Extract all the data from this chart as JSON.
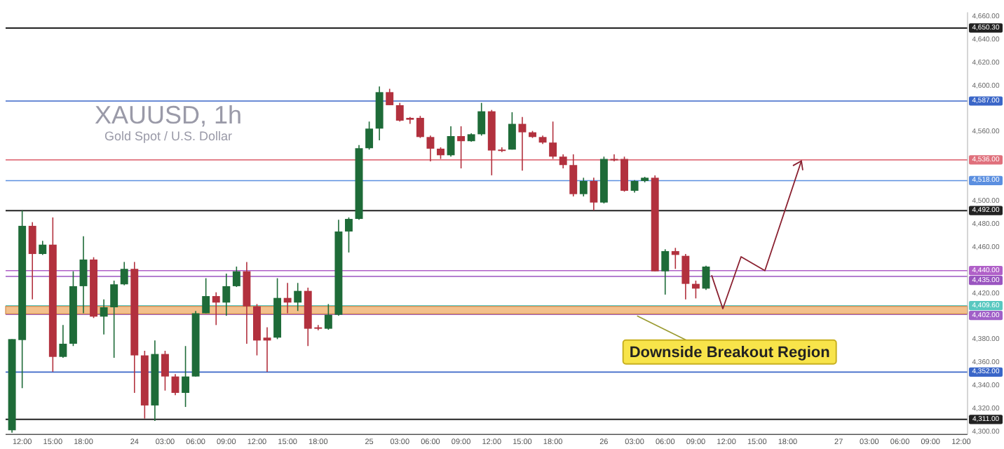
{
  "chart_data": {
    "type": "candlestick",
    "title": "XAUUSD, 1h",
    "subtitle": "Gold Spot / U.S. Dollar",
    "categories": [
      null,
      "12:00",
      null,
      null,
      "15:00",
      null,
      null,
      "18:00",
      null,
      null,
      null,
      null,
      "24",
      null,
      null,
      "03:00",
      null,
      null,
      "06:00",
      null,
      null,
      "09:00",
      null,
      null,
      "12:00",
      null,
      null,
      "15:00",
      null,
      null,
      "18:00",
      null,
      null,
      null,
      null,
      "25",
      null,
      null,
      "03:00",
      null,
      null,
      "06:00",
      null,
      null,
      "09:00",
      null,
      null,
      "12:00",
      null,
      null,
      "15:00",
      null,
      null,
      "18:00",
      null,
      null,
      null,
      null,
      "26",
      null,
      null,
      "03:00",
      null,
      null,
      "06:00",
      null,
      null,
      "09:00",
      null,
      null,
      "12:00",
      null,
      null,
      "15:00",
      null,
      null,
      "18:00",
      null,
      null,
      null,
      null,
      "27",
      null,
      null,
      "03:00",
      null,
      null,
      "06:00",
      null,
      null,
      "09:00",
      null,
      null,
      "12:00"
    ],
    "ohlc": [
      [
        4301.6,
        4380.6,
        4299.5,
        4380.6
      ],
      [
        4379.8,
        4492.2,
        4338.1,
        4478.8
      ],
      [
        4478.8,
        4482.0,
        4415.1,
        4454.4
      ],
      [
        4454.4,
        4465.8,
        4453.6,
        4462.5
      ],
      [
        4462.5,
        4486.1,
        4352.3,
        4365.2
      ],
      [
        4365.2,
        4392.8,
        4364.4,
        4376.6
      ],
      [
        4376.6,
        4439.4,
        4374.6,
        4426.5
      ],
      [
        4426.5,
        4469.8,
        4403.0,
        4449.6
      ],
      [
        4449.6,
        4451.6,
        4398.9,
        4400.1
      ],
      [
        4400.1,
        4415.1,
        4384.7,
        4408.2
      ],
      [
        4408.2,
        4431.3,
        4364.4,
        4428.1
      ],
      [
        4428.1,
        4447.5,
        4427.3,
        4441.5
      ],
      [
        4441.5,
        4447.5,
        4334.0,
        4366.5
      ],
      [
        4366.5,
        4370.5,
        4311.7,
        4323.1
      ],
      [
        4323.1,
        4379.4,
        4309.7,
        4367.7
      ],
      [
        4367.7,
        4370.5,
        4336.0,
        4348.2
      ],
      [
        4348.2,
        4350.2,
        4332.0,
        4334.0
      ],
      [
        4334.0,
        4374.6,
        4321.8,
        4348.2
      ],
      [
        4348.2,
        4405.0,
        4348.2,
        4403.0
      ],
      [
        4403.0,
        4433.4,
        4403.0,
        4417.9
      ],
      [
        4417.9,
        4421.2,
        4392.8,
        4412.3
      ],
      [
        4412.3,
        4437.4,
        4400.9,
        4426.5
      ],
      [
        4426.5,
        4443.5,
        4425.8,
        4439.4
      ],
      [
        4439.4,
        4447.5,
        4376.6,
        4409.0
      ],
      [
        4409.0,
        4411.0,
        4366.5,
        4379.4
      ],
      [
        4381.9,
        4390.8,
        4352.3,
        4379.4
      ],
      [
        4381.9,
        4433.4,
        4380.6,
        4416.3
      ],
      [
        4416.3,
        4429.3,
        4403.0,
        4412.3
      ],
      [
        4412.3,
        4429.3,
        4405.0,
        4422.4
      ],
      [
        4422.4,
        4425.2,
        4374.6,
        4389.6
      ],
      [
        4390.8,
        4392.8,
        4388.3,
        4389.6
      ],
      [
        4389.6,
        4411.0,
        4388.7,
        4401.7
      ],
      [
        4401.7,
        4484.0,
        4400.9,
        4473.9
      ],
      [
        4473.9,
        4486.1,
        4455.7,
        4484.8
      ],
      [
        4484.8,
        4548.9,
        4484.0,
        4546.1
      ],
      [
        4546.1,
        4569.2,
        4544.9,
        4563.1
      ],
      [
        4563.1,
        4599.6,
        4553.0,
        4594.7
      ],
      [
        4594.7,
        4597.6,
        4583.4,
        4583.4
      ],
      [
        4583.4,
        4585.4,
        4569.2,
        4570.0
      ],
      [
        4572.4,
        4573.2,
        4567.2,
        4570.8
      ],
      [
        4572.4,
        4574.1,
        4555.0,
        4555.8
      ],
      [
        4555.8,
        4557.0,
        4534.7,
        4545.7
      ],
      [
        4545.7,
        4546.9,
        4536.8,
        4540.0
      ],
      [
        4540.0,
        4565.1,
        4538.8,
        4556.6
      ],
      [
        4556.6,
        4565.1,
        4528.6,
        4552.2
      ],
      [
        4552.2,
        4559.1,
        4551.8,
        4558.2
      ],
      [
        4558.2,
        4585.4,
        4557.0,
        4578.1
      ],
      [
        4578.1,
        4579.3,
        4522.6,
        4544.1
      ],
      [
        4544.9,
        4546.9,
        4542.8,
        4544.1
      ],
      [
        4544.9,
        4577.3,
        4544.9,
        4567.2
      ],
      [
        4567.2,
        4573.2,
        4526.6,
        4559.9
      ],
      [
        4559.9,
        4561.1,
        4555.0,
        4555.8
      ],
      [
        4555.8,
        4557.0,
        4549.7,
        4551.0
      ],
      [
        4551.0,
        4569.2,
        4536.8,
        4538.8
      ],
      [
        4538.8,
        4540.8,
        4528.6,
        4531.5
      ],
      [
        4531.5,
        4540.8,
        4504.3,
        4506.3
      ],
      [
        4506.3,
        4520.5,
        4504.3,
        4517.7
      ],
      [
        4517.7,
        4520.5,
        4492.2,
        4499.0
      ],
      [
        4499.0,
        4538.8,
        4498.2,
        4536.8
      ],
      [
        4536.8,
        4540.8,
        4534.7,
        4536.0
      ],
      [
        4536.8,
        4538.8,
        4508.4,
        4509.2
      ],
      [
        4509.2,
        4518.5,
        4507.6,
        4517.7
      ],
      [
        4517.7,
        4521.3,
        4516.5,
        4520.5
      ],
      [
        4520.5,
        4522.6,
        4439.4,
        4439.4
      ],
      [
        4439.4,
        4458.5,
        4419.2,
        4456.9
      ],
      [
        4456.9,
        4459.7,
        4441.5,
        4453.6
      ],
      [
        4452.8,
        4454.4,
        4415.1,
        4428.5
      ],
      [
        4428.5,
        4431.3,
        4415.9,
        4424.4
      ],
      [
        4424.4,
        4444.3,
        4423.2,
        4443.5
      ],
      null,
      null,
      null,
      null,
      null,
      null,
      null,
      null,
      null,
      null,
      null,
      null,
      null,
      null,
      null,
      null,
      null,
      null,
      null,
      null,
      null,
      null,
      null,
      null,
      null
    ],
    "colors": [
      "#1e6b38",
      "#1e6b38",
      "#b2313e",
      "#1e6b38",
      "#b2313e",
      "#1e6b38",
      "#1e6b38",
      "#1e6b38",
      "#b2313e",
      "#1e6b38",
      "#1e6b38",
      "#1e6b38",
      "#b2313e",
      "#b2313e",
      "#1e6b38",
      "#b2313e",
      "#b2313e",
      "#1e6b38",
      "#1e6b38",
      "#1e6b38",
      "#b2313e",
      "#1e6b38",
      "#1e6b38",
      "#b2313e",
      "#b2313e",
      "#b2313e",
      "#1e6b38",
      "#b2313e",
      "#1e6b38",
      "#b2313e",
      "#b2313e",
      "#1e6b38",
      "#1e6b38",
      "#1e6b38",
      "#1e6b38",
      "#1e6b38",
      "#1e6b38",
      "#b2313e",
      "#b2313e",
      "#b2313e",
      "#b2313e",
      "#b2313e",
      "#b2313e",
      "#1e6b38",
      "#b2313e",
      "#1e6b38",
      "#1e6b38",
      "#b2313e",
      "#b2313e",
      "#1e6b38",
      "#b2313e",
      "#b2313e",
      "#b2313e",
      "#b2313e",
      "#b2313e",
      "#b2313e",
      "#1e6b38",
      "#b2313e",
      "#1e6b38",
      "#b2313e",
      "#b2313e",
      "#1e6b38",
      "#1e6b38",
      "#b2313e",
      "#1e6b38",
      "#b2313e",
      "#b2313e",
      "#b2313e",
      "#1e6b38",
      null,
      null,
      null,
      null,
      null,
      null,
      null,
      null,
      null,
      null,
      null,
      null,
      null,
      null,
      null,
      null,
      null,
      null,
      null,
      null,
      null,
      null,
      null,
      null,
      null
    ],
    "ylim": [
      4298,
      4664
    ],
    "yticks": [
      {
        "value": 4660,
        "label": "4,660.00"
      },
      {
        "value": 4640,
        "label": "4,640.00"
      },
      {
        "value": 4620,
        "label": "4,620.00"
      },
      {
        "value": 4600,
        "label": "4,600.00"
      },
      {
        "value": 4560,
        "label": "4,560.00"
      },
      {
        "value": 4500,
        "label": "4,500.00"
      },
      {
        "value": 4480,
        "label": "4,480.00"
      },
      {
        "value": 4460,
        "label": "4,460.00"
      },
      {
        "value": 4420,
        "label": "4,420.00"
      },
      {
        "value": 4380,
        "label": "4,380.00"
      },
      {
        "value": 4360,
        "label": "4,360.00"
      },
      {
        "value": 4340,
        "label": "4,340.00"
      },
      {
        "value": 4320,
        "label": "4,320.00"
      },
      {
        "value": 4300,
        "label": "4,300.00"
      }
    ],
    "ref_lines": [
      {
        "axis": "y",
        "value": 4650.3,
        "label": "4,650.30",
        "color": "#222222"
      },
      {
        "axis": "y",
        "value": 4587.0,
        "label": "4,587.00",
        "color": "#3a66c8"
      },
      {
        "axis": "y",
        "value": 4536.0,
        "label": "4,536.00",
        "color": "#e0707c"
      },
      {
        "axis": "y",
        "value": 4518.0,
        "label": "4,518.00",
        "color": "#5b8fe0"
      },
      {
        "axis": "y",
        "value": 4492.0,
        "label": "4,492.00",
        "color": "#222222"
      },
      {
        "axis": "y",
        "value": 4440.0,
        "label": "4,440.00",
        "color": "#b060c8"
      },
      {
        "axis": "y",
        "value": 4435.0,
        "label": "4,435.00",
        "color": "#9a55c0"
      },
      {
        "axis": "y",
        "value": 4409.6,
        "label": "4,409.60",
        "color": "#58c8c0"
      },
      {
        "axis": "y",
        "value": 4402.0,
        "label": "4,402.00",
        "color": "#a060c8"
      },
      {
        "axis": "y",
        "value": 4352.0,
        "label": "4,352.00",
        "color": "#3a66c8"
      },
      {
        "axis": "y",
        "value": 4311.0,
        "label": "4,311.00",
        "color": "#222222"
      }
    ],
    "bands": [
      {
        "axis": "y",
        "from": 4402.5,
        "to": 4409,
        "color": "#f3c08c"
      }
    ],
    "annotations": [
      "Downside Breakout Region"
    ]
  }
}
